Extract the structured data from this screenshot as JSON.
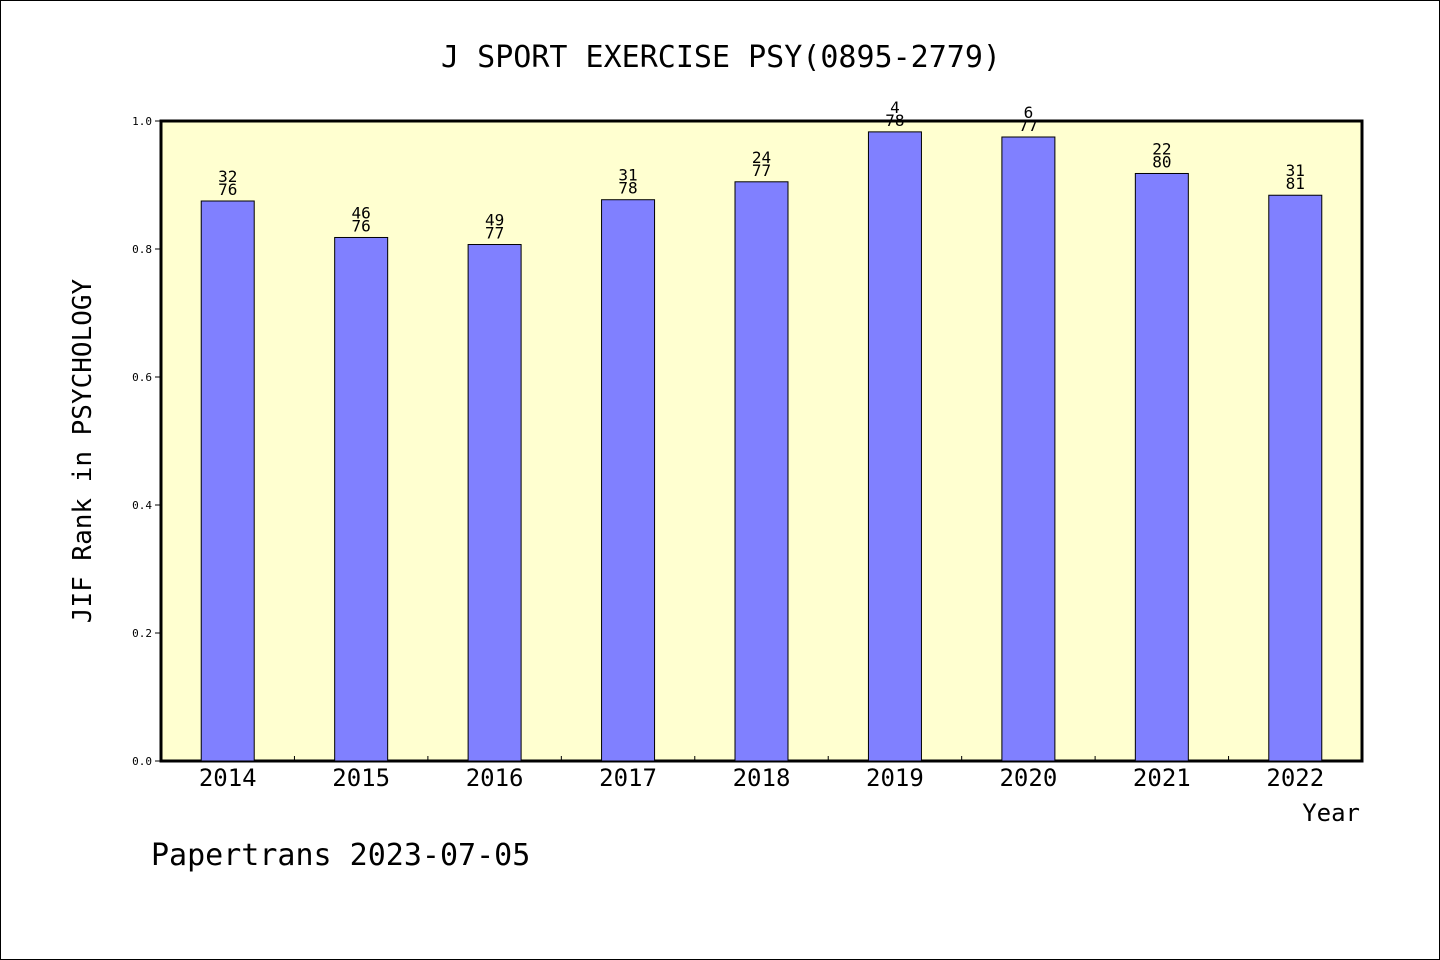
{
  "chart_data": {
    "type": "bar",
    "title": "J SPORT EXERCISE PSY(0895-2779)",
    "xlabel": "Year",
    "ylabel": "JIF Rank in PSYCHOLOGY",
    "ylim": [
      0,
      1.0
    ],
    "yticks": [
      "0.0",
      "0.2",
      "0.4",
      "0.6",
      "0.8",
      "1.0"
    ],
    "grid": false,
    "categories": [
      "2014",
      "2015",
      "2016",
      "2017",
      "2018",
      "2019",
      "2020",
      "2021",
      "2022"
    ],
    "values": [
      0.875,
      0.818,
      0.807,
      0.877,
      0.905,
      0.983,
      0.975,
      0.918,
      0.884
    ],
    "labels": [
      {
        "rank": "32",
        "total": "76"
      },
      {
        "rank": "46",
        "total": "76"
      },
      {
        "rank": "49",
        "total": "77"
      },
      {
        "rank": "31",
        "total": "78"
      },
      {
        "rank": "24",
        "total": "77"
      },
      {
        "rank": "4",
        "total": "78"
      },
      {
        "rank": "6",
        "total": "77"
      },
      {
        "rank": "22",
        "total": "80"
      },
      {
        "rank": "31",
        "total": "81"
      }
    ],
    "colors": {
      "bar": "#8080ff",
      "plot_background": "#ffffd0",
      "axis": "#000000"
    }
  },
  "footer": "Papertrans 2023-07-05"
}
